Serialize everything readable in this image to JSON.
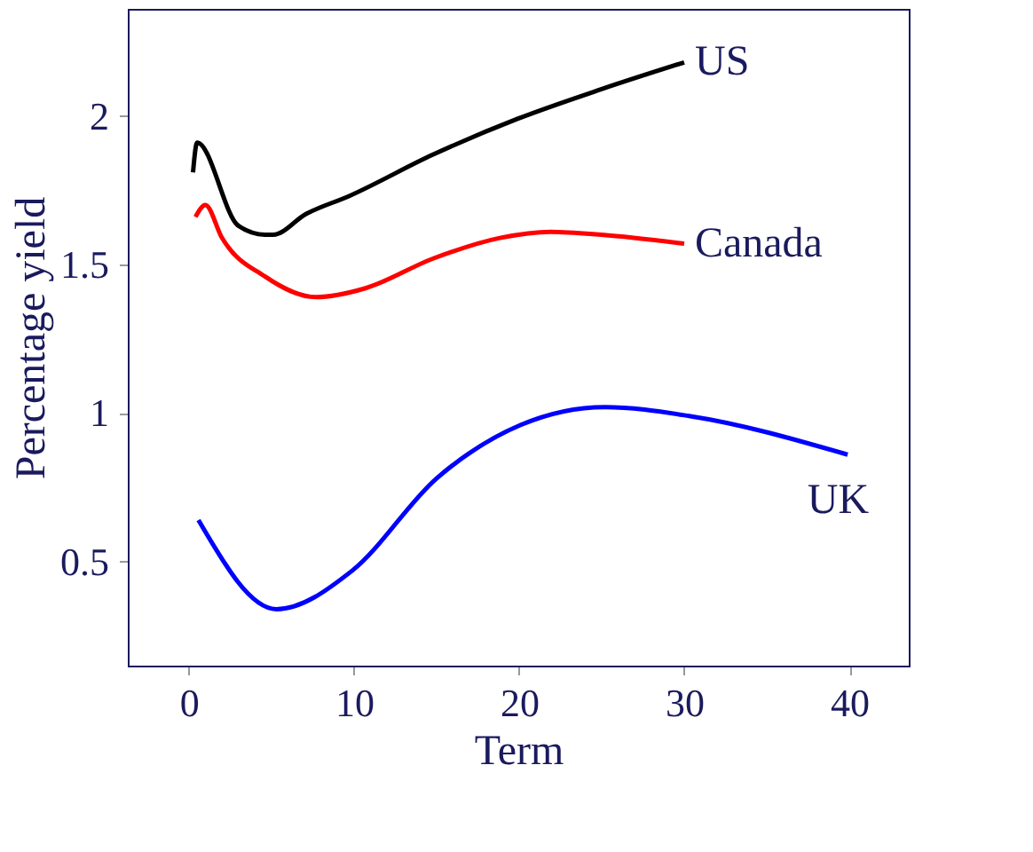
{
  "chart_data": {
    "type": "line",
    "xlabel": "Term",
    "ylabel": "Percentage yield",
    "xlim": [
      -3.7,
      43.6
    ],
    "ylim": [
      0.15,
      2.36
    ],
    "xticks": [
      0,
      10,
      20,
      30,
      40
    ],
    "yticks": [
      0.5,
      1,
      1.5,
      2
    ],
    "grid": false,
    "marker": "none",
    "line_style": "solid",
    "series": [
      {
        "name": "US",
        "color": "#000000",
        "x": [
          0.25,
          0.5,
          3,
          4.6,
          5.1,
          7.1,
          9.7,
          14.8,
          19.9,
          25,
          30
        ],
        "values": [
          1.81,
          1.91,
          1.63,
          1.6,
          1.6,
          1.67,
          1.73,
          1.87,
          1.99,
          2.09,
          2.18
        ]
      },
      {
        "name": "Canada",
        "color": "#ff0000",
        "x": [
          0.4,
          1,
          2,
          4.6,
          7.7,
          10.7,
          14.8,
          18.9,
          21.9,
          25,
          30
        ],
        "values": [
          1.66,
          1.7,
          1.59,
          1.46,
          1.39,
          1.42,
          1.52,
          1.59,
          1.61,
          1.6,
          1.57
        ]
      },
      {
        "name": "UK",
        "color": "#0000ff",
        "x": [
          0.58,
          5.3,
          9.9,
          15,
          20.1,
          25.2,
          30.3,
          39.9
        ],
        "values": [
          0.64,
          0.34,
          0.47,
          0.78,
          0.96,
          1.02,
          0.99,
          0.86
        ]
      }
    ]
  }
}
